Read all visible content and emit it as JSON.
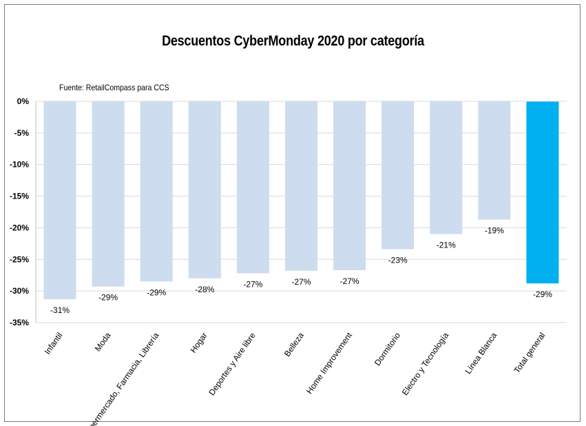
{
  "chart_data": {
    "type": "bar",
    "title": "Descuentos CyberMonday 2020 por categoría",
    "subtitle": "Fuente: RetailCompass para CCS",
    "xlabel": "",
    "ylabel": "",
    "categories": [
      "Infantil",
      "Moda",
      "Supermercado, Farmacia, Librería",
      "Hogar",
      "Deportes y Aire libre",
      "Belleza",
      "Home Improvement",
      "Dormitorio",
      "Electro y Tecnología",
      "Línea Blanca",
      "Total general"
    ],
    "values": [
      -31.3,
      -29.3,
      -28.5,
      -28.0,
      -27.2,
      -26.8,
      -26.7,
      -23.4,
      -21.0,
      -18.7,
      -28.8
    ],
    "data_labels": [
      "-31%",
      "-29%",
      "-29%",
      "-28%",
      "-27%",
      "-27%",
      "-27%",
      "-23%",
      "-21%",
      "-19%",
      "-29%"
    ],
    "ylim": [
      -35,
      0
    ],
    "yticks": [
      0,
      -5,
      -10,
      -15,
      -20,
      -25,
      -30,
      -35
    ],
    "ytick_labels": [
      "0%",
      "-5%",
      "-10%",
      "-15%",
      "-20%",
      "-25%",
      "-30%",
      "-35%"
    ],
    "grid": true,
    "legend": "none",
    "colors": {
      "bar": "#cddcee",
      "highlight": "#00b0f0",
      "grid": "#d9d9d9",
      "axis": "#bfbfbf"
    },
    "highlight_index": 10
  }
}
